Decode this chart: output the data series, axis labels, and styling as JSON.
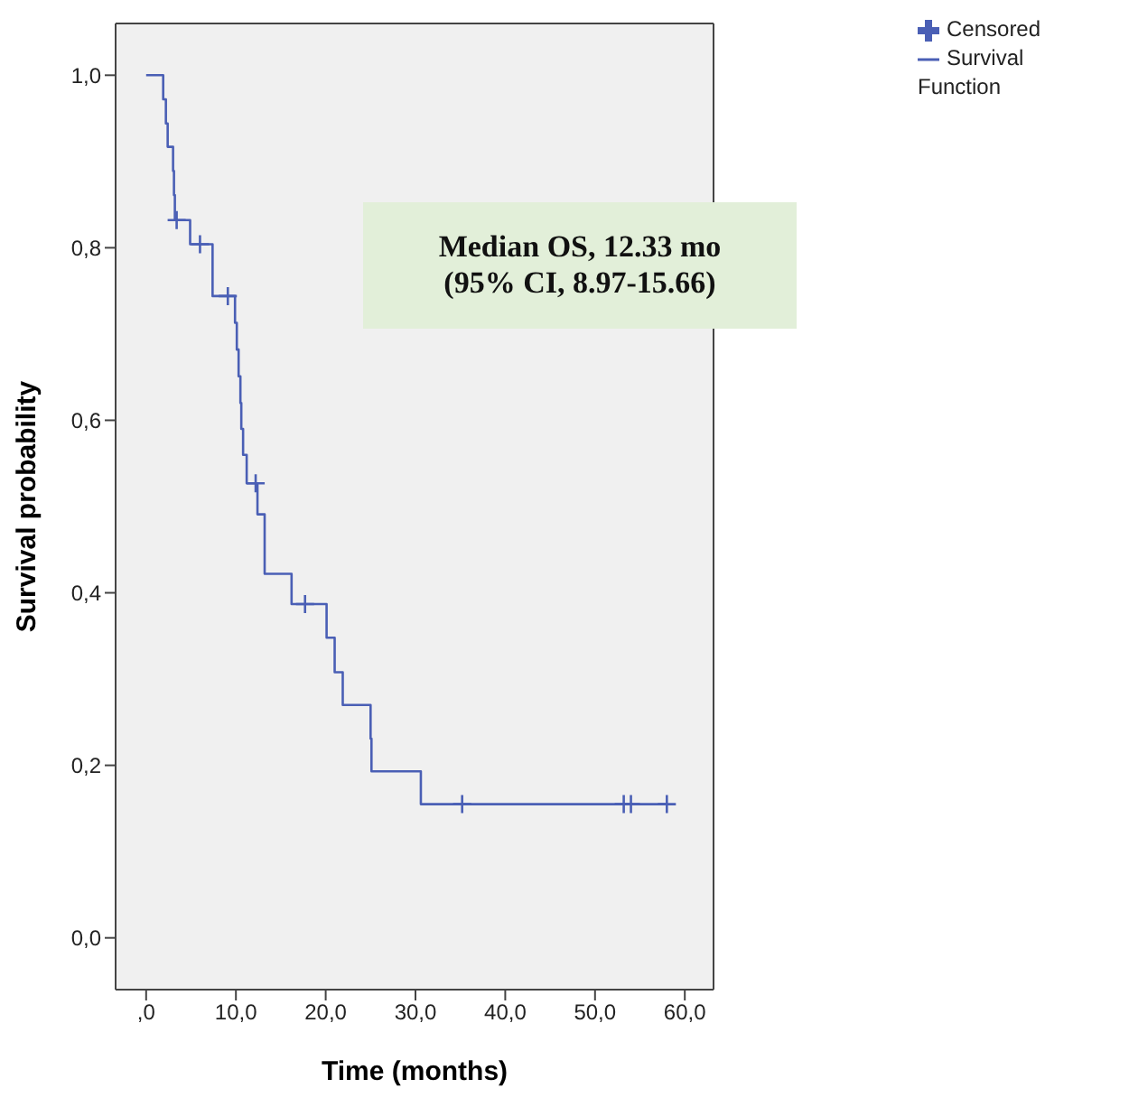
{
  "chart_data": {
    "type": "step",
    "xlabel": "Time (months)",
    "ylabel": "Survival probability",
    "annotations": [
      "Median OS, 12.33 mo",
      "(95% CI, 8.97-15.66)"
    ],
    "xlim": [
      -3.4,
      63.2
    ],
    "ylim": [
      -0.06,
      1.06
    ],
    "xticks": [
      {
        "value": 0,
        "label": ",0"
      },
      {
        "value": 10,
        "label": "10,0"
      },
      {
        "value": 20,
        "label": "20,0"
      },
      {
        "value": 30,
        "label": "30,0"
      },
      {
        "value": 40,
        "label": "40,0"
      },
      {
        "value": 50,
        "label": "50,0"
      },
      {
        "value": 60,
        "label": "60,0"
      }
    ],
    "yticks": [
      {
        "value": 0,
        "label": "0,0"
      },
      {
        "value": 0.2,
        "label": "0,2"
      },
      {
        "value": 0.4,
        "label": "0,4"
      },
      {
        "value": 0.6,
        "label": "0,6"
      },
      {
        "value": 0.8,
        "label": "0,8"
      },
      {
        "value": 1,
        "label": "1,0"
      }
    ],
    "legend": "top right",
    "series": [
      {
        "name": "Survival Function",
        "type": "step",
        "color": "#4a5fb5",
        "marker": "none",
        "x": [
          0,
          1.9,
          2.2,
          2.4,
          3.0,
          3.1,
          3.2,
          4.9,
          7.4,
          9.9,
          10.1,
          10.3,
          10.5,
          10.6,
          10.8,
          11.2,
          12.4,
          13.2,
          16.2,
          20.1,
          21.0,
          21.9,
          25.0,
          25.1,
          30.6,
          58.0
        ],
        "values": [
          1,
          0.972,
          0.944,
          0.917,
          0.889,
          0.861,
          0.832,
          0.804,
          0.744,
          0.713,
          0.682,
          0.651,
          0.62,
          0.59,
          0.56,
          0.527,
          0.491,
          0.422,
          0.387,
          0.348,
          0.308,
          0.27,
          0.231,
          0.193,
          0.155,
          0.155
        ]
      },
      {
        "name": "Censored",
        "type": "scatter",
        "color": "#4a5fb5",
        "marker": "cross",
        "x": [
          3.4,
          6.0,
          9.1,
          12.2,
          17.7,
          35.2,
          53.2,
          54.0,
          58.0
        ],
        "values": [
          0.832,
          0.804,
          0.744,
          0.527,
          0.387,
          0.155,
          0.155,
          0.155,
          0.155
        ]
      }
    ]
  }
}
